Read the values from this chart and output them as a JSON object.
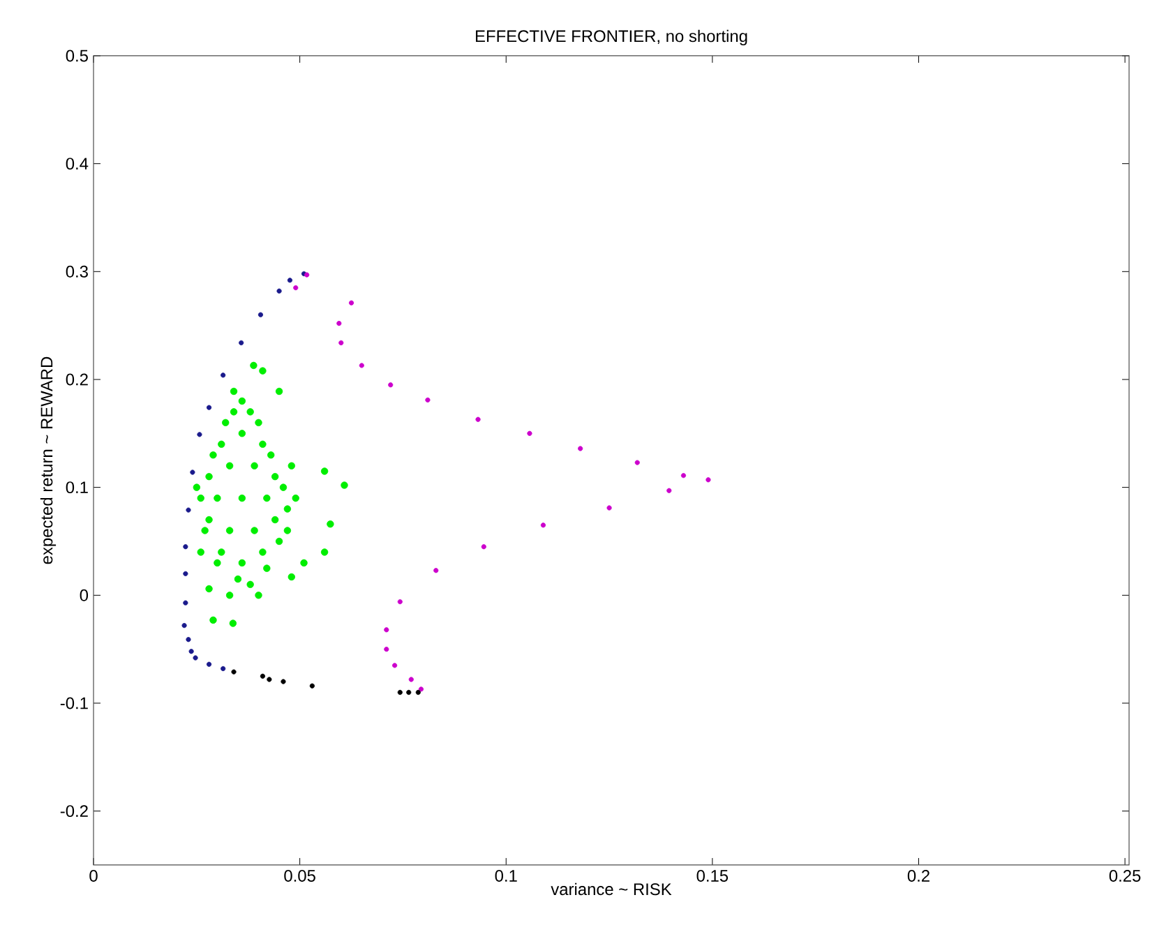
{
  "chart_data": {
    "type": "scatter",
    "title": "EFFECTIVE FRONTIER, no shorting",
    "xlabel": "variance ~ RISK",
    "ylabel": "expected return ~ REWARD",
    "xlim": [
      0,
      0.251
    ],
    "ylim": [
      -0.25,
      0.5
    ],
    "xticks": [
      0,
      0.05,
      0.1,
      0.15,
      0.2,
      0.25
    ],
    "yticks": [
      -0.2,
      -0.1,
      0,
      0.1,
      0.2,
      0.3,
      0.4,
      0.5
    ],
    "grid": false,
    "marker": "circle",
    "series": [
      {
        "color": "#1a1a8c",
        "x": [
          0.0237,
          0.023,
          0.022,
          0.0223,
          0.0223,
          0.0223,
          0.023,
          0.024,
          0.0257,
          0.028,
          0.0314,
          0.0358,
          0.0405,
          0.045,
          0.0476,
          0.051,
          0.0247,
          0.028,
          0.0314
        ],
        "values": [
          -0.052,
          -0.041,
          -0.028,
          -0.007,
          0.02,
          0.045,
          0.079,
          0.114,
          0.149,
          0.174,
          0.204,
          0.234,
          0.26,
          0.282,
          0.292,
          0.298,
          -0.058,
          -0.064,
          -0.068
        ]
      },
      {
        "color": "#cc00cc",
        "x": [
          0.0517,
          0.049,
          0.0625,
          0.0595,
          0.06,
          0.065,
          0.072,
          0.081,
          0.0932,
          0.1057,
          0.118,
          0.1318,
          0.143,
          0.149,
          0.1395,
          0.125,
          0.109,
          0.0946,
          0.083,
          0.0743,
          0.071,
          0.071,
          0.073,
          0.077,
          0.0794
        ],
        "values": [
          0.297,
          0.285,
          0.271,
          0.252,
          0.234,
          0.213,
          0.195,
          0.181,
          0.163,
          0.15,
          0.136,
          0.123,
          0.111,
          0.107,
          0.097,
          0.081,
          0.065,
          0.045,
          0.023,
          -0.006,
          -0.032,
          -0.05,
          -0.065,
          -0.078,
          -0.087
        ]
      },
      {
        "color": "#00ee00",
        "x": [
          0.036,
          0.033,
          0.039,
          0.036,
          0.033,
          0.039,
          0.036,
          0.03,
          0.042,
          0.028,
          0.044,
          0.028,
          0.044,
          0.031,
          0.041,
          0.031,
          0.041,
          0.034,
          0.038,
          0.035,
          0.038,
          0.046,
          0.047,
          0.026,
          0.027,
          0.029,
          0.043,
          0.045,
          0.03,
          0.042,
          0.036,
          0.04,
          0.032,
          0.048,
          0.049,
          0.047,
          0.033,
          0.04,
          0.026,
          0.025,
          0.0388,
          0.041,
          0.034,
          0.045,
          0.056,
          0.0608,
          0.0574,
          0.056,
          0.029,
          0.0338,
          0.051,
          0.048,
          0.028
        ],
        "values": [
          0.09,
          0.12,
          0.12,
          0.15,
          0.06,
          0.06,
          0.03,
          0.09,
          0.09,
          0.11,
          0.11,
          0.07,
          0.07,
          0.14,
          0.14,
          0.04,
          0.04,
          0.17,
          0.17,
          0.015,
          0.01,
          0.1,
          0.08,
          0.09,
          0.06,
          0.13,
          0.13,
          0.05,
          0.03,
          0.025,
          0.18,
          0.16,
          0.16,
          0.12,
          0.09,
          0.06,
          0.0,
          0.0,
          0.04,
          0.1,
          0.213,
          0.208,
          0.189,
          0.189,
          0.115,
          0.102,
          0.066,
          0.04,
          -0.023,
          -0.026,
          0.03,
          0.017,
          0.006
        ]
      },
      {
        "color": "#000000",
        "x": [
          0.034,
          0.041,
          0.0426,
          0.046,
          0.053,
          0.0743,
          0.0764,
          0.0787
        ],
        "values": [
          -0.071,
          -0.075,
          -0.078,
          -0.08,
          -0.084,
          -0.09,
          -0.09,
          -0.09
        ]
      }
    ]
  }
}
